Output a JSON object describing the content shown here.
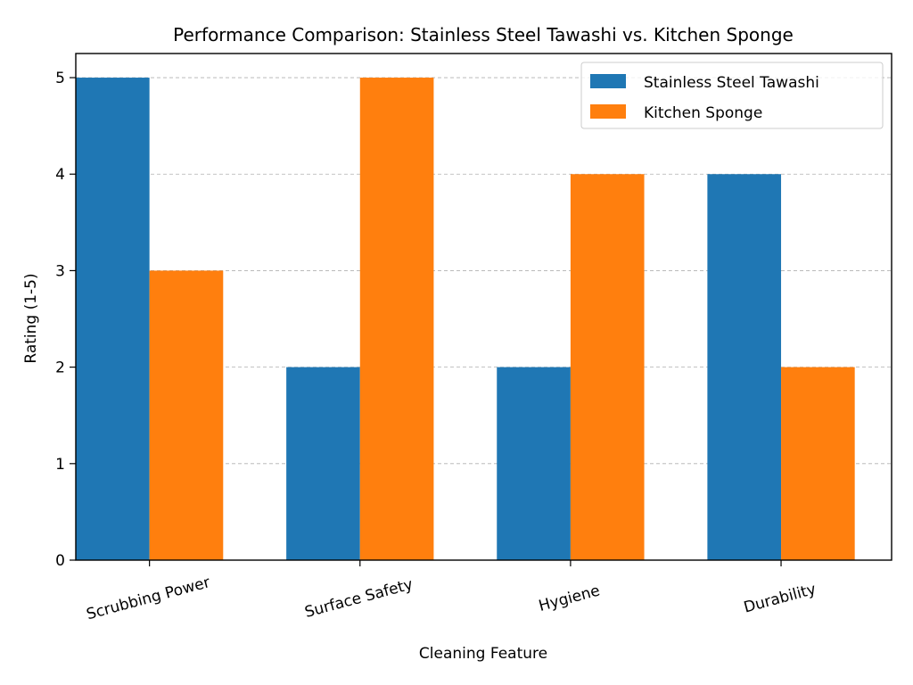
{
  "chart_data": {
    "type": "bar",
    "title": "Performance Comparison: Stainless Steel Tawashi vs. Kitchen Sponge",
    "xlabel": "Cleaning Feature",
    "ylabel": "Rating (1-5)",
    "categories": [
      "Scrubbing Power",
      "Surface Safety",
      "Hygiene",
      "Durability"
    ],
    "series": [
      {
        "name": "Stainless Steel Tawashi",
        "color": "#1f77b4",
        "values": [
          5,
          2,
          2,
          4
        ]
      },
      {
        "name": "Kitchen Sponge",
        "color": "#ff7f0e",
        "values": [
          3,
          5,
          4,
          2
        ]
      }
    ],
    "ylim": [
      0,
      5.25
    ],
    "yticks": [
      0,
      1,
      2,
      3,
      4,
      5
    ],
    "grid": "y-dashed",
    "legend_position": "top-right",
    "xtick_rotation": 15
  }
}
